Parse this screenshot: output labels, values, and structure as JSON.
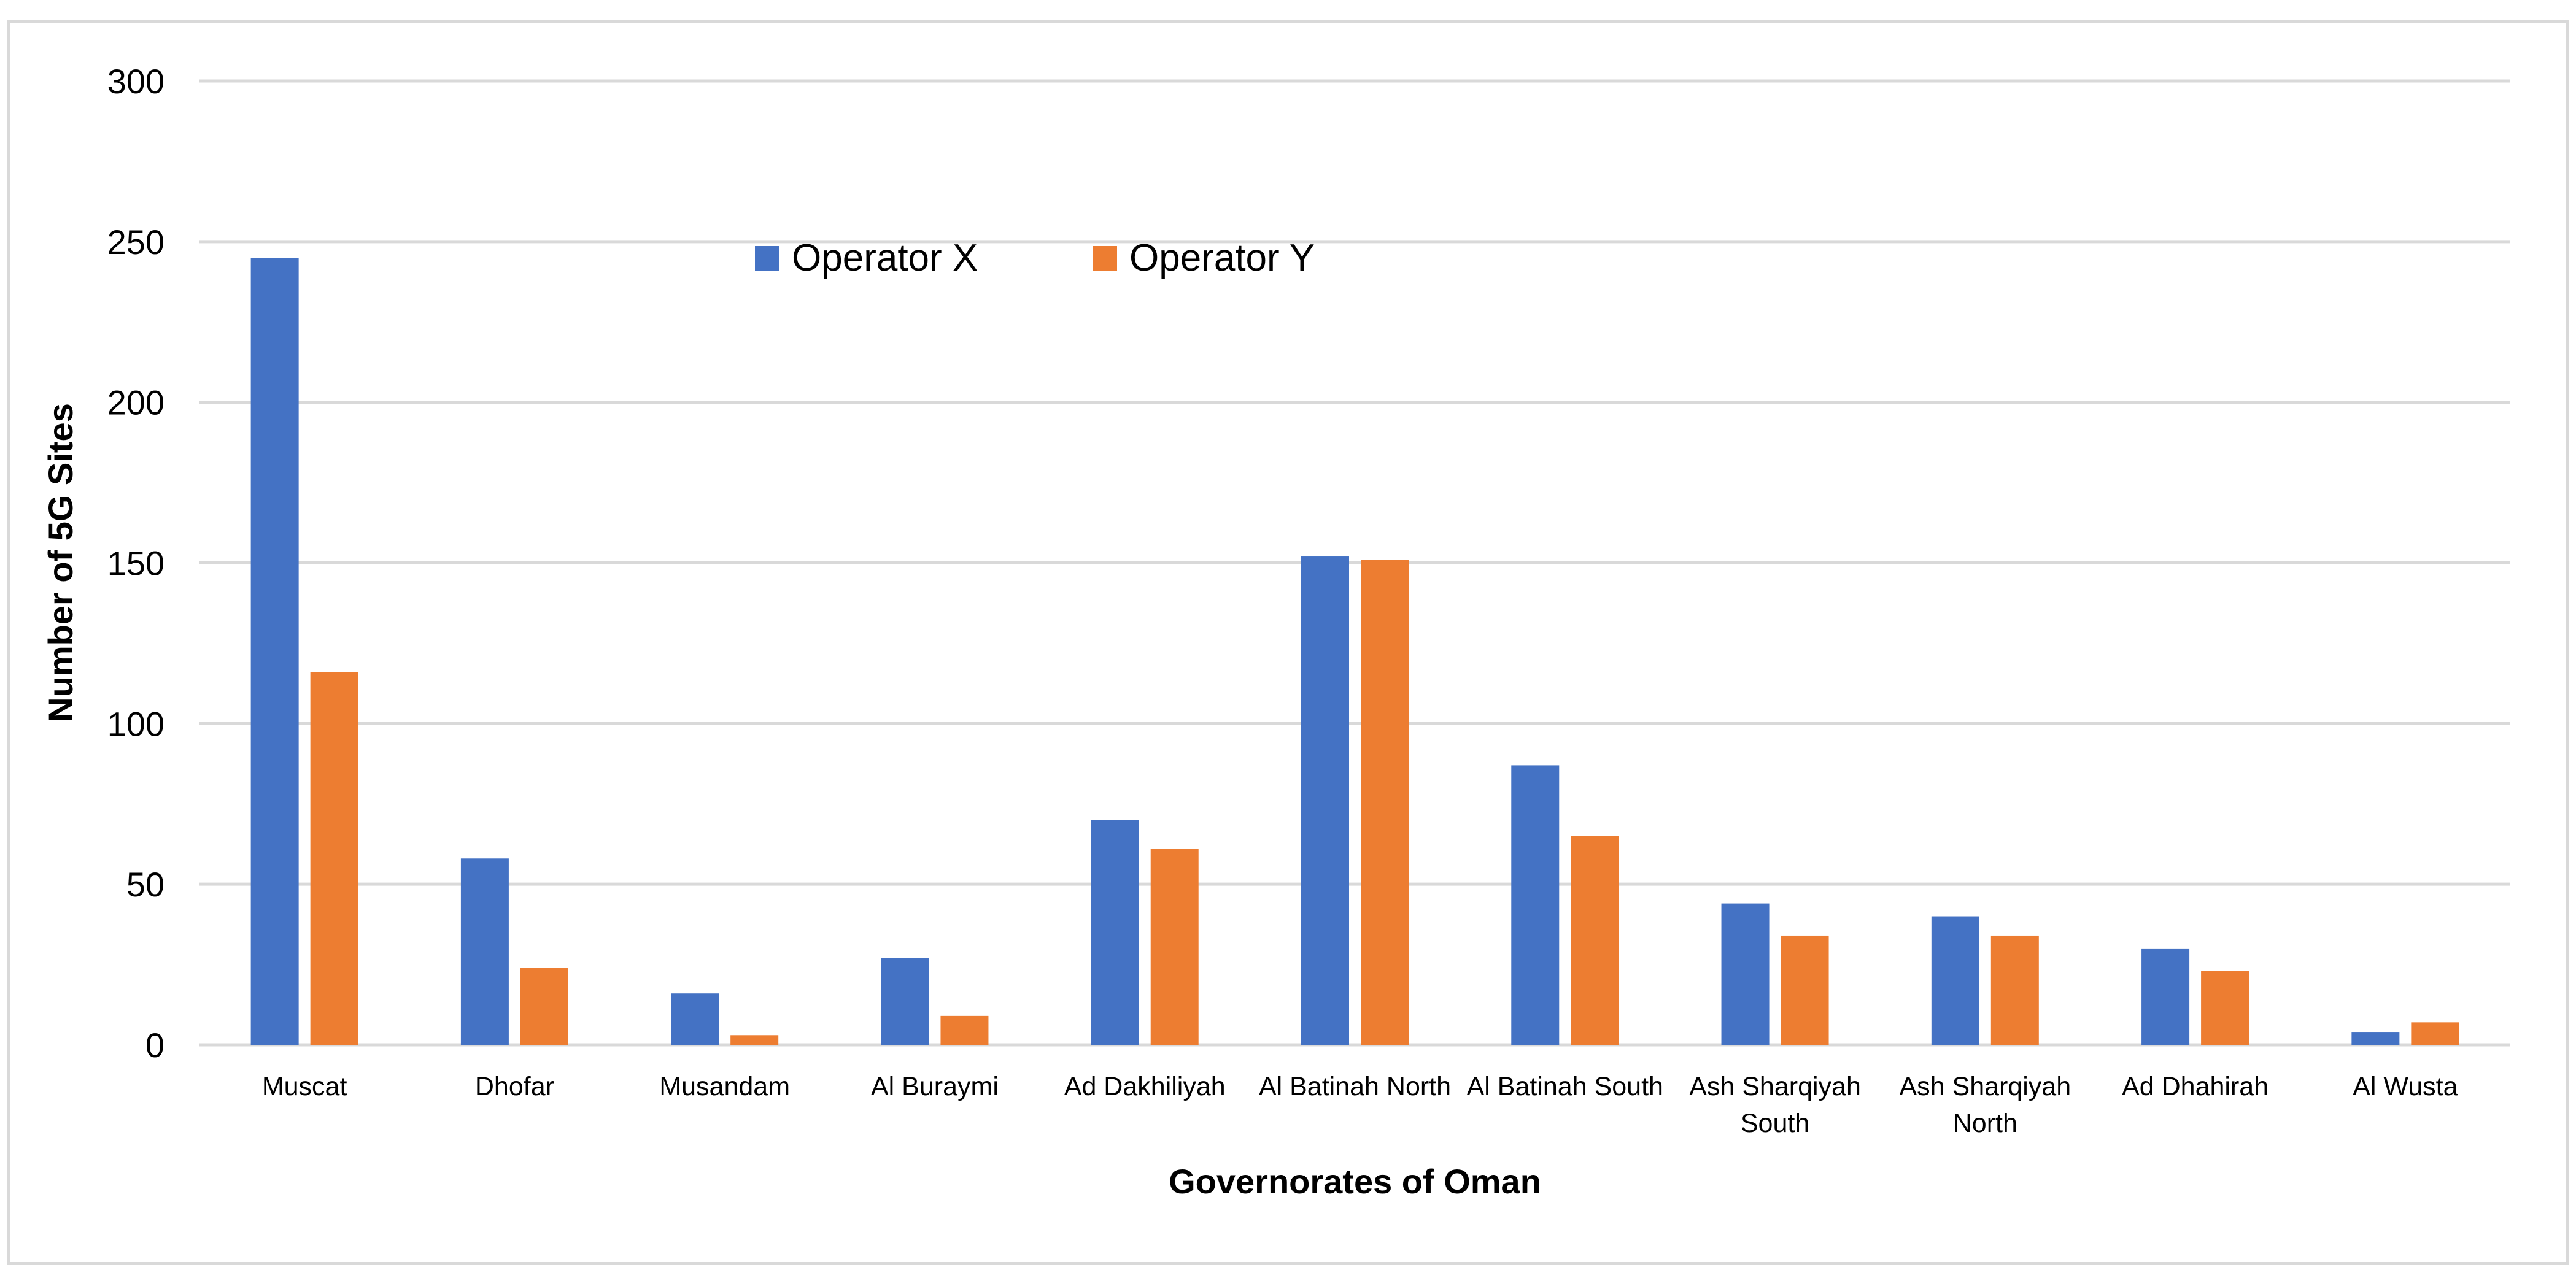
{
  "chart_data": {
    "type": "bar",
    "title": "",
    "xlabel": "Governorates of Oman",
    "ylabel": "Number of 5G Sites",
    "ylim": [
      0,
      300
    ],
    "yticks": [
      0,
      50,
      100,
      150,
      200,
      250,
      300
    ],
    "grid": true,
    "legend_position": "top-center",
    "categories": [
      [
        "Muscat"
      ],
      [
        "Dhofar"
      ],
      [
        "Musandam"
      ],
      [
        "Al Buraymi"
      ],
      [
        "Ad Dakhiliyah"
      ],
      [
        "Al Batinah North"
      ],
      [
        "Al Batinah South"
      ],
      [
        "Ash Sharqiyah",
        "South"
      ],
      [
        "Ash Sharqiyah",
        "North"
      ],
      [
        "Ad Dhahirah"
      ],
      [
        "Al Wusta"
      ]
    ],
    "series": [
      {
        "name": "Operator X",
        "color": "#4472C4",
        "values": [
          245,
          58,
          16,
          27,
          70,
          152,
          87,
          44,
          40,
          30,
          4
        ]
      },
      {
        "name": "Operator Y",
        "color": "#ED7D31",
        "values": [
          116,
          24,
          3,
          9,
          61,
          151,
          65,
          34,
          34,
          23,
          7
        ]
      }
    ]
  }
}
